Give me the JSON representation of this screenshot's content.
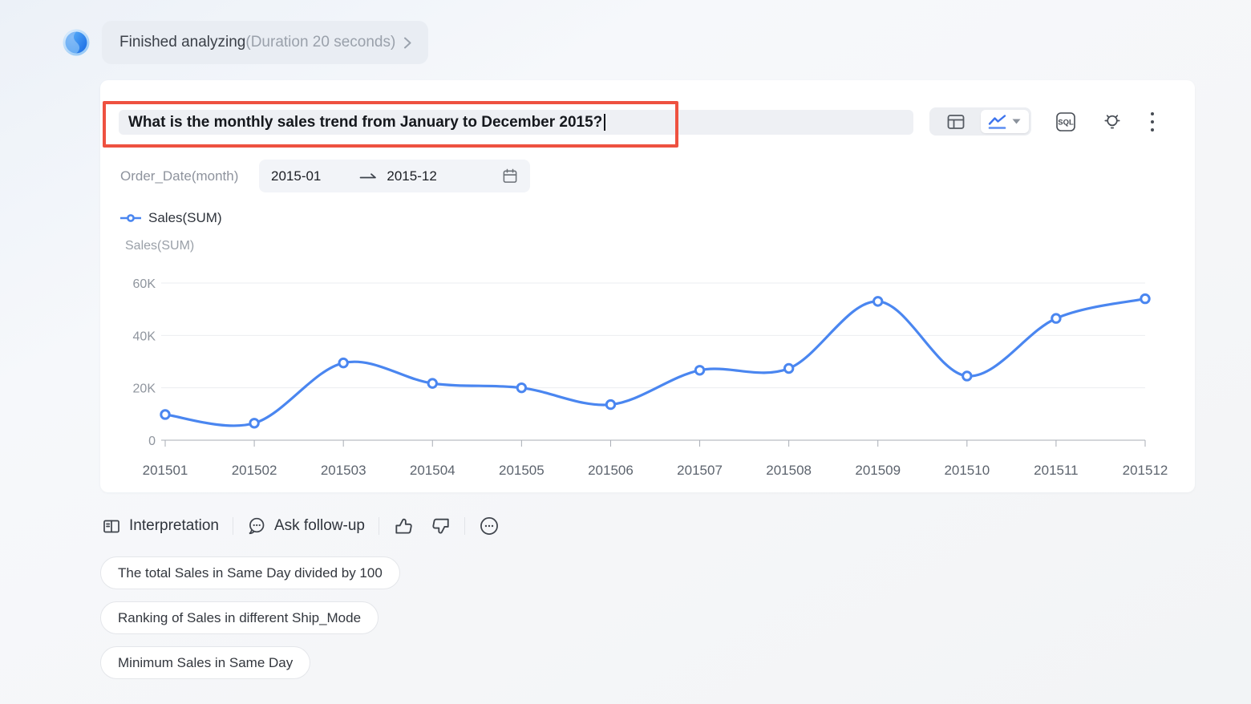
{
  "status_bar": {
    "title": "Finished analyzing",
    "duration": "(Duration 20 seconds)",
    "icons": [
      "assistant-avatar",
      "chevron-right-icon"
    ]
  },
  "question": {
    "value": "What is the monthly sales trend from January to December 2015?"
  },
  "toolbar": {
    "sql_label": "SQL",
    "icons": [
      "table-view-icon",
      "line-chart-view-icon",
      "caret-down-icon",
      "sql-icon",
      "insight-bulb-icon",
      "more-kebab-icon"
    ],
    "selected_view": "line-chart"
  },
  "filter": {
    "field_label": "Order_Date(month)",
    "start": "2015-01",
    "end": "2015-12",
    "icons": [
      "range-arrow-icon",
      "calendar-icon"
    ]
  },
  "chart_data": {
    "type": "line",
    "title": "",
    "xlabel": "",
    "ylabel": "Sales(SUM)",
    "categories": [
      "201501",
      "201502",
      "201503",
      "201504",
      "201505",
      "201506",
      "201507",
      "201508",
      "201509",
      "201510",
      "201511",
      "201512"
    ],
    "series": [
      {
        "name": "Sales(SUM)",
        "values": [
          9800,
          6500,
          29500,
          21700,
          20000,
          13600,
          26700,
          27400,
          53000,
          24500,
          46500,
          54000
        ]
      }
    ],
    "ylim": [
      0,
      60000
    ],
    "yticks": [
      {
        "value": 0,
        "label": "0"
      },
      {
        "value": 20000,
        "label": "20K"
      },
      {
        "value": 40000,
        "label": "40K"
      },
      {
        "value": 60000,
        "label": "60K"
      }
    ],
    "grid": true,
    "smooth": true,
    "legend_position": "top-left",
    "line_color": "#4a86f0"
  },
  "actions": {
    "interpretation_label": "Interpretation",
    "ask_followup_label": "Ask follow-up",
    "icons": [
      "book-icon",
      "chat-bubble-icon",
      "thumbs-up-icon",
      "thumbs-down-icon",
      "ellipsis-circle-icon"
    ]
  },
  "suggestions": [
    "The total Sales in Same Day divided by 100",
    "Ranking of Sales in different Ship_Mode",
    "Minimum Sales in Same Day"
  ],
  "colors": {
    "accent": "#4a86f0",
    "annotation": "#ee5140",
    "card_bg": "#ffffff",
    "input_bg": "#eef0f4",
    "pill_bg": "#e9edf3",
    "grid_line": "#ebedf0",
    "axis_line": "#a8adb5"
  }
}
